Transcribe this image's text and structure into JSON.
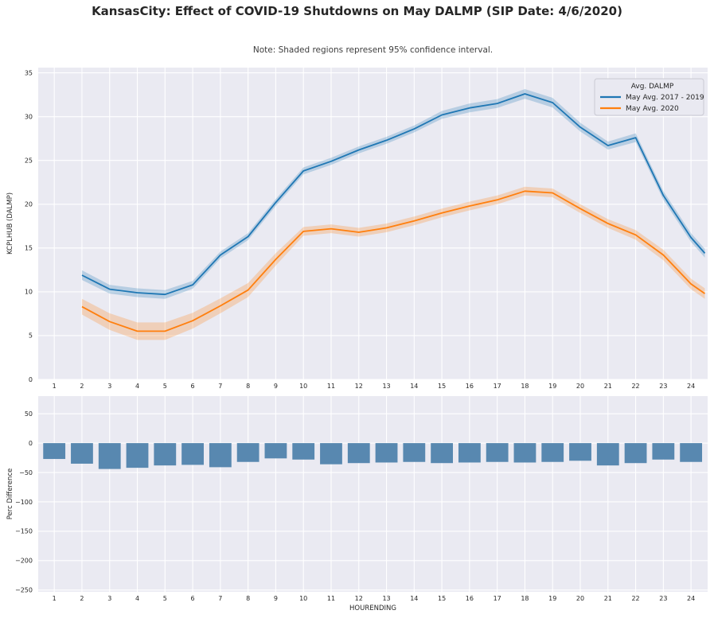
{
  "figure": {
    "title": "KansasCity: Effect of COVID-19 Shutdowns on May DALMP (SIP Date: 4/6/2020)",
    "note": "Note: Shaded regions represent 95% confidence interval."
  },
  "colors": {
    "axes_background": "#eaeaf2",
    "grid": "#ffffff",
    "series_2017_2019": "#1f77b4",
    "series_2020": "#ff7f0e",
    "band_2017_2019": "rgba(31,119,180,0.25)",
    "band_2020": "rgba(255,127,14,0.25)",
    "bar": "#5888b0",
    "legend_background": "#e9e9f1",
    "legend_border": "#c9c9d2",
    "text": "#262626"
  },
  "chart_data": [
    {
      "type": "line",
      "ylabel": "KCPLHUB (DALMP)",
      "xlabel": "",
      "grid": true,
      "x_ticks": [
        1,
        2,
        3,
        4,
        5,
        6,
        7,
        8,
        9,
        10,
        11,
        12,
        13,
        14,
        15,
        16,
        17,
        18,
        19,
        20,
        21,
        22,
        23,
        24
      ],
      "y_ticks": [
        0,
        5,
        10,
        15,
        20,
        25,
        30,
        35
      ],
      "xlim": [
        0.42,
        24.6
      ],
      "ylim": [
        0,
        35.6
      ],
      "legend": {
        "title": "Avg. DALMP",
        "position": "upper right"
      },
      "x": [
        2,
        3,
        4,
        5,
        6,
        7,
        8,
        9,
        10,
        11,
        12,
        13,
        14,
        15,
        16,
        17,
        18,
        19,
        20,
        21,
        22,
        23,
        24,
        24.5
      ],
      "series": [
        {
          "name": "May Avg. 2017 - 2019",
          "values": [
            11.9,
            10.3,
            9.9,
            9.7,
            10.8,
            14.2,
            16.3,
            20.2,
            23.8,
            24.9,
            26.2,
            27.3,
            28.6,
            30.2,
            31.0,
            31.5,
            32.6,
            31.6,
            28.8,
            26.7,
            27.6,
            21.0,
            16.2,
            14.4
          ],
          "ci_halfwidth": [
            0.55,
            0.5,
            0.5,
            0.5,
            0.45,
            0.4,
            0.4,
            0.4,
            0.4,
            0.4,
            0.4,
            0.4,
            0.4,
            0.45,
            0.5,
            0.5,
            0.55,
            0.55,
            0.5,
            0.45,
            0.5,
            0.5,
            0.5,
            0.5
          ]
        },
        {
          "name": "May Avg. 2020",
          "values": [
            8.3,
            6.6,
            5.5,
            5.5,
            6.7,
            8.4,
            10.2,
            13.7,
            16.9,
            17.2,
            16.8,
            17.3,
            18.1,
            19.0,
            19.8,
            20.5,
            21.5,
            21.3,
            19.5,
            17.8,
            16.5,
            14.2,
            10.9,
            9.8
          ],
          "ci_halfwidth": [
            0.9,
            0.95,
            1.0,
            1.0,
            0.9,
            0.85,
            0.8,
            0.7,
            0.5,
            0.5,
            0.5,
            0.5,
            0.5,
            0.5,
            0.5,
            0.5,
            0.5,
            0.5,
            0.5,
            0.5,
            0.55,
            0.6,
            0.6,
            0.6
          ]
        }
      ]
    },
    {
      "type": "bar",
      "ylabel": "Perc Difference",
      "xlabel": "HOURENDING",
      "grid": true,
      "categories": [
        1,
        2,
        3,
        4,
        5,
        6,
        7,
        8,
        9,
        10,
        11,
        12,
        13,
        14,
        15,
        16,
        17,
        18,
        19,
        20,
        21,
        22,
        23,
        24
      ],
      "values": [
        -27,
        -35,
        -44,
        -42,
        -38,
        -37,
        -41,
        -32,
        -26,
        -28,
        -36,
        -34,
        -33,
        -32,
        -34,
        -33,
        -32,
        -33,
        -32,
        -30,
        -38,
        -34,
        -28,
        -32
      ],
      "y_ticks": [
        50,
        0,
        -50,
        -100,
        -150,
        -200,
        -250
      ],
      "xlim": [
        0.42,
        24.6
      ],
      "ylim": [
        -253,
        80
      ]
    }
  ]
}
